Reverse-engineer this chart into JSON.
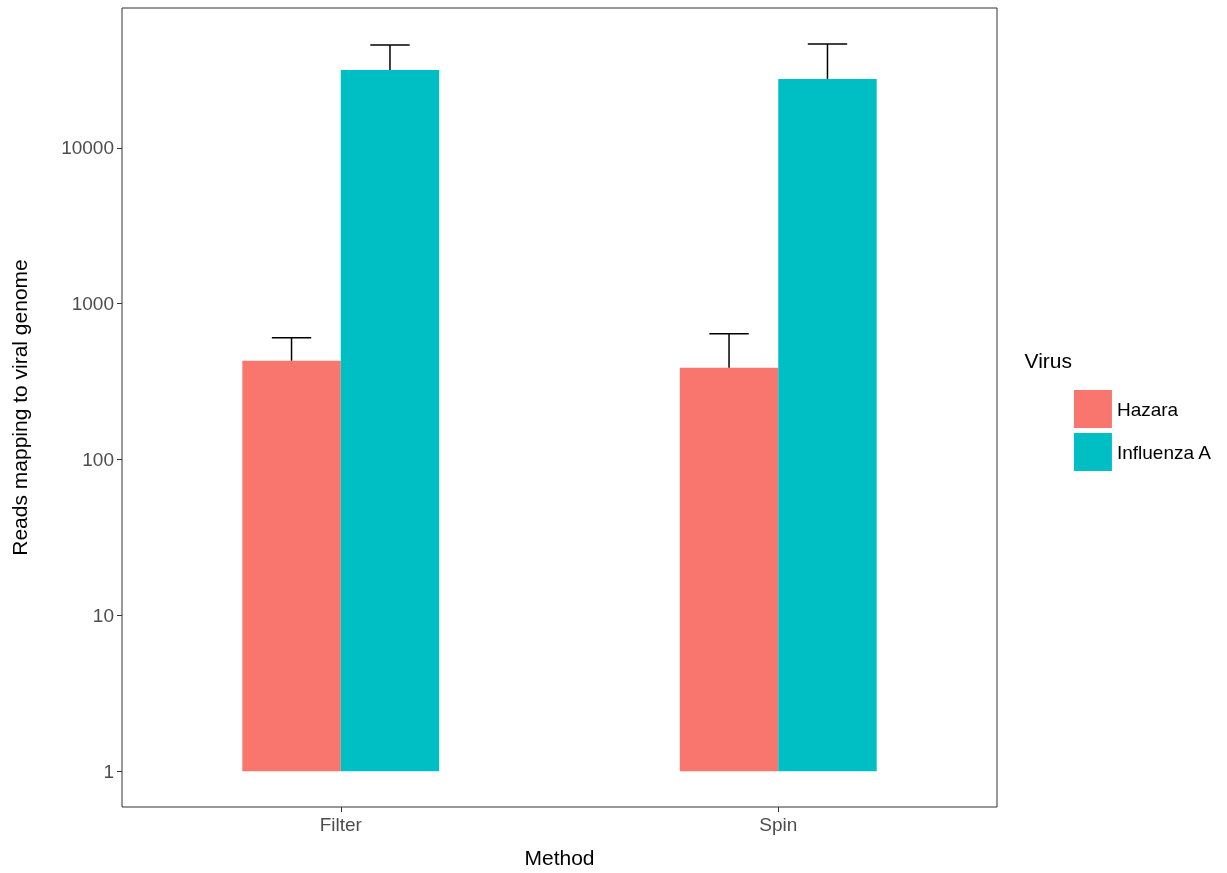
{
  "chart_data": {
    "type": "bar",
    "xlabel": "Method",
    "ylabel": "Reads mapping to viral genome",
    "legend_title": "Virus",
    "categories": [
      "Filter",
      "Spin"
    ],
    "series": [
      {
        "name": "Hazara",
        "color": "#f8766d",
        "base": [
          1,
          1
        ],
        "values": [
          431,
          389
        ],
        "errors": [
          [
            431,
            606
          ],
          [
            389,
            642
          ]
        ]
      },
      {
        "name": "Influenza A",
        "color": "#00bfc4",
        "base": [
          1,
          1
        ],
        "values": [
          31600,
          27700
        ],
        "errors": [
          [
            31600,
            45700
          ],
          [
            27700,
            46400
          ]
        ]
      }
    ],
    "log": "y",
    "ylim": [
      0.59,
      79000
    ],
    "yticks": [
      1,
      10,
      100,
      1000,
      10000
    ],
    "grid": false,
    "legend": "right"
  }
}
